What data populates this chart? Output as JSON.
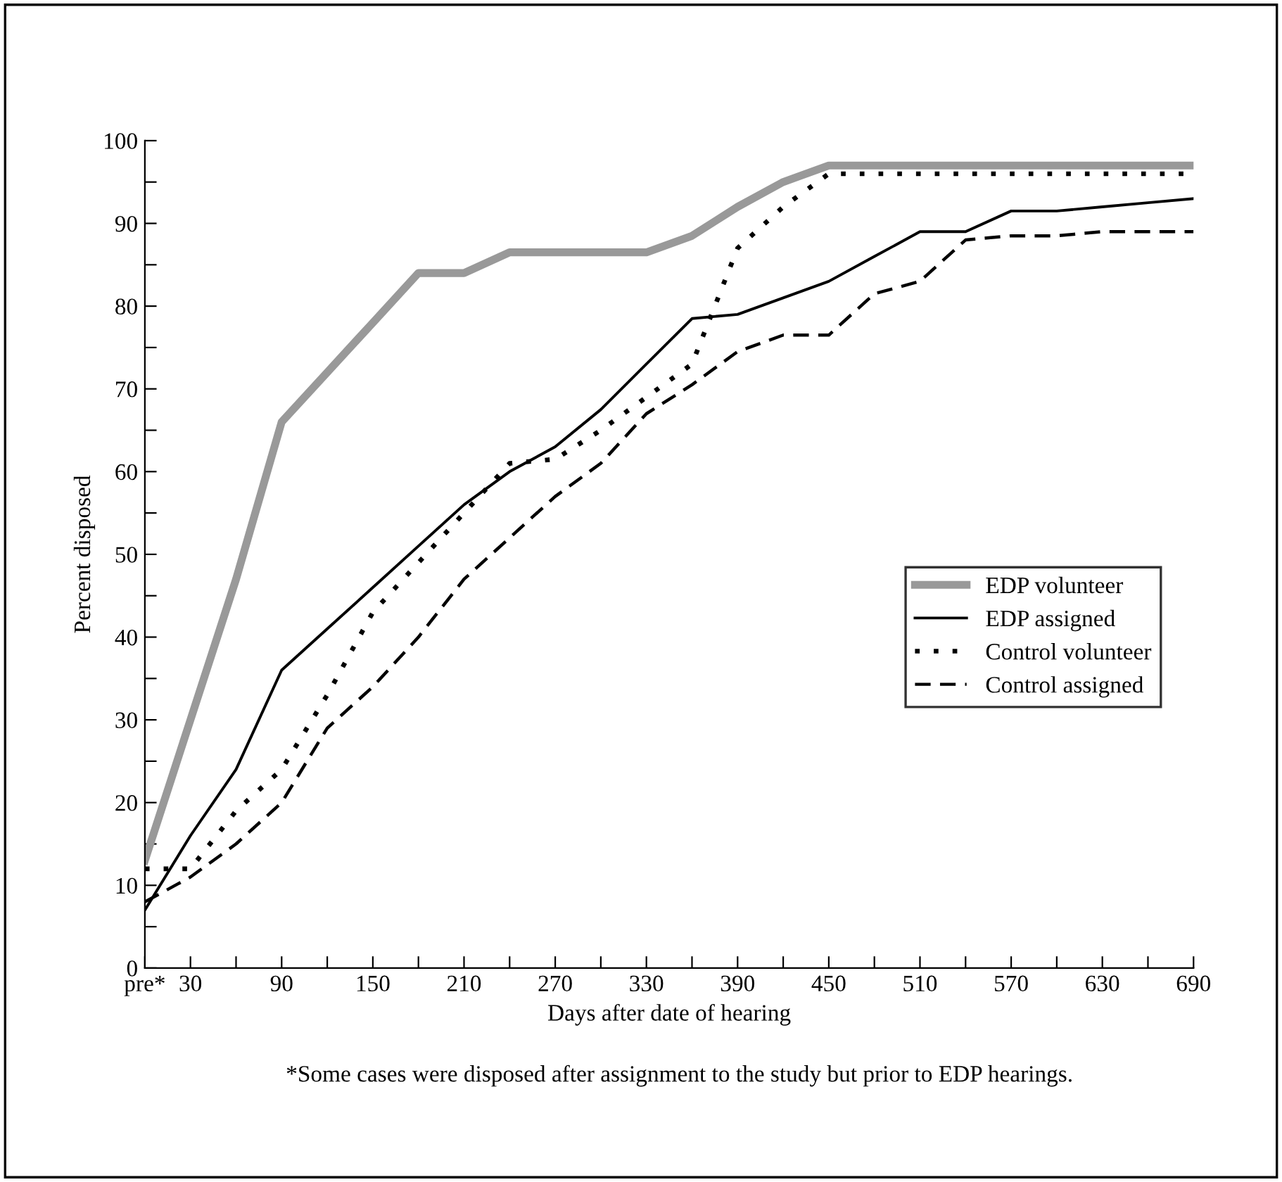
{
  "chart_data": {
    "type": "line",
    "xlabel": "Days after date of hearing",
    "ylabel": "Percent disposed",
    "x": [
      0,
      30,
      60,
      90,
      120,
      150,
      180,
      210,
      240,
      270,
      300,
      330,
      360,
      390,
      420,
      450,
      480,
      510,
      540,
      570,
      600,
      630,
      660,
      690
    ],
    "series": [
      {
        "name": "EDP volunteer",
        "color": "#999999",
        "line_style": "solid",
        "values": [
          13,
          30,
          47,
          66,
          72,
          78,
          84,
          84,
          86.5,
          86.5,
          86.5,
          86.5,
          88.5,
          92,
          95,
          97,
          97,
          97,
          97,
          97,
          97,
          97,
          97,
          97
        ]
      },
      {
        "name": "EDP assigned",
        "color": "#000000",
        "line_style": "solid",
        "values": [
          7,
          16,
          24,
          36,
          41,
          46,
          51,
          56,
          60,
          63,
          67.5,
          73,
          78.5,
          79,
          81,
          83,
          86,
          89,
          89,
          91.5,
          91.5,
          92,
          92.5,
          93
        ]
      },
      {
        "name": "Control volunteer",
        "color": "#000000",
        "line_style": "dotted",
        "values": [
          12,
          12,
          19,
          24,
          33,
          43,
          49,
          55,
          61,
          61.5,
          65,
          69,
          73,
          87,
          92,
          96,
          96,
          96,
          96,
          96,
          96,
          96,
          96,
          96
        ]
      },
      {
        "name": "Control assigned",
        "color": "#000000",
        "line_style": "dashed",
        "values": [
          8,
          11,
          15,
          20,
          29,
          34,
          40,
          47,
          52,
          57,
          61,
          67,
          70.5,
          74.5,
          76.5,
          76.5,
          81.5,
          83,
          88,
          88.5,
          88.5,
          89,
          89,
          89
        ]
      }
    ],
    "xlim": [
      0,
      690
    ],
    "xticks": [
      {
        "value": 0,
        "label": "pre*"
      },
      30,
      {
        "value": 60,
        "label": null
      },
      90,
      {
        "value": 120,
        "label": null
      },
      150,
      {
        "value": 180,
        "label": null
      },
      210,
      {
        "value": 240,
        "label": null
      },
      270,
      {
        "value": 300,
        "label": null
      },
      330,
      {
        "value": 360,
        "label": null
      },
      390,
      {
        "value": 420,
        "label": null
      },
      450,
      {
        "value": 480,
        "label": null
      },
      510,
      {
        "value": 540,
        "label": null
      },
      570,
      {
        "value": 600,
        "label": null
      },
      630,
      {
        "value": 660,
        "label": null
      },
      690
    ],
    "ylim": [
      0,
      100
    ],
    "yticks": [
      0,
      {
        "value": 5,
        "label": null
      },
      10,
      {
        "value": 15,
        "label": null
      },
      20,
      {
        "value": 25,
        "label": null
      },
      30,
      {
        "value": 35,
        "label": null
      },
      40,
      {
        "value": 45,
        "label": null
      },
      50,
      {
        "value": 55,
        "label": null
      },
      60,
      {
        "value": 65,
        "label": null
      },
      70,
      {
        "value": 75,
        "label": null
      },
      80,
      {
        "value": 85,
        "label": null
      },
      90,
      {
        "value": 95,
        "label": null
      },
      100
    ],
    "grid": false,
    "legend": "right",
    "annotations": [
      "*Some cases were disposed after assignment to the study but prior to EDP hearings."
    ]
  }
}
